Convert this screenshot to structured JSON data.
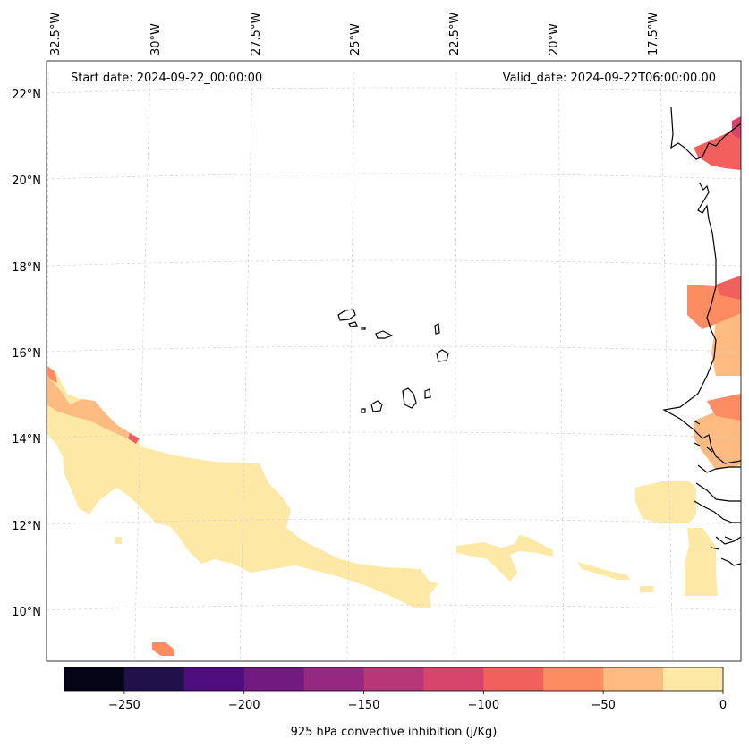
{
  "map": {
    "start_label": "Start date: 2024-09-22_00:00:00",
    "valid_label": "Valid_date: 2024-09-22T06:00:00.00",
    "lon_ticks": [
      "32.5°W",
      "30°W",
      "27.5°W",
      "25°W",
      "22.5°W",
      "20°W",
      "17.5°W"
    ],
    "lat_ticks": [
      "22°N",
      "20°N",
      "18°N",
      "16°N",
      "14°N",
      "12°N",
      "10°N"
    ]
  },
  "colorbar": {
    "label": "925 hPa convective inhibition (j/Kg)",
    "ticks": [
      "−250",
      "−200",
      "−150",
      "−100",
      "−50",
      "0"
    ],
    "bounds": [
      -275,
      -250,
      -225,
      -200,
      -175,
      -150,
      -125,
      -100,
      -75,
      -50,
      -25,
      0
    ],
    "colors": [
      "#050417",
      "#20114b",
      "#4e0d7e",
      "#731a81",
      "#952881",
      "#b73779",
      "#d8456c",
      "#f1605d",
      "#fd8c63",
      "#febb81",
      "#fde8a6"
    ]
  },
  "chart_data": {
    "type": "heatmap",
    "variable": "925 hPa convective inhibition (j/Kg)",
    "units": "j/Kg",
    "extent": {
      "lon": [
        -32.5,
        -16.5
      ],
      "lat": [
        9,
        22.5
      ]
    },
    "lon_ticks": [
      -32.5,
      -30,
      -27.5,
      -25,
      -22.5,
      -20,
      -17.5
    ],
    "lat_ticks": [
      22,
      20,
      18,
      16,
      14,
      12,
      10
    ],
    "levels": [
      -275,
      -250,
      -225,
      -200,
      -175,
      -150,
      -125,
      -100,
      -75,
      -50,
      -25,
      0
    ],
    "grid": true
  }
}
